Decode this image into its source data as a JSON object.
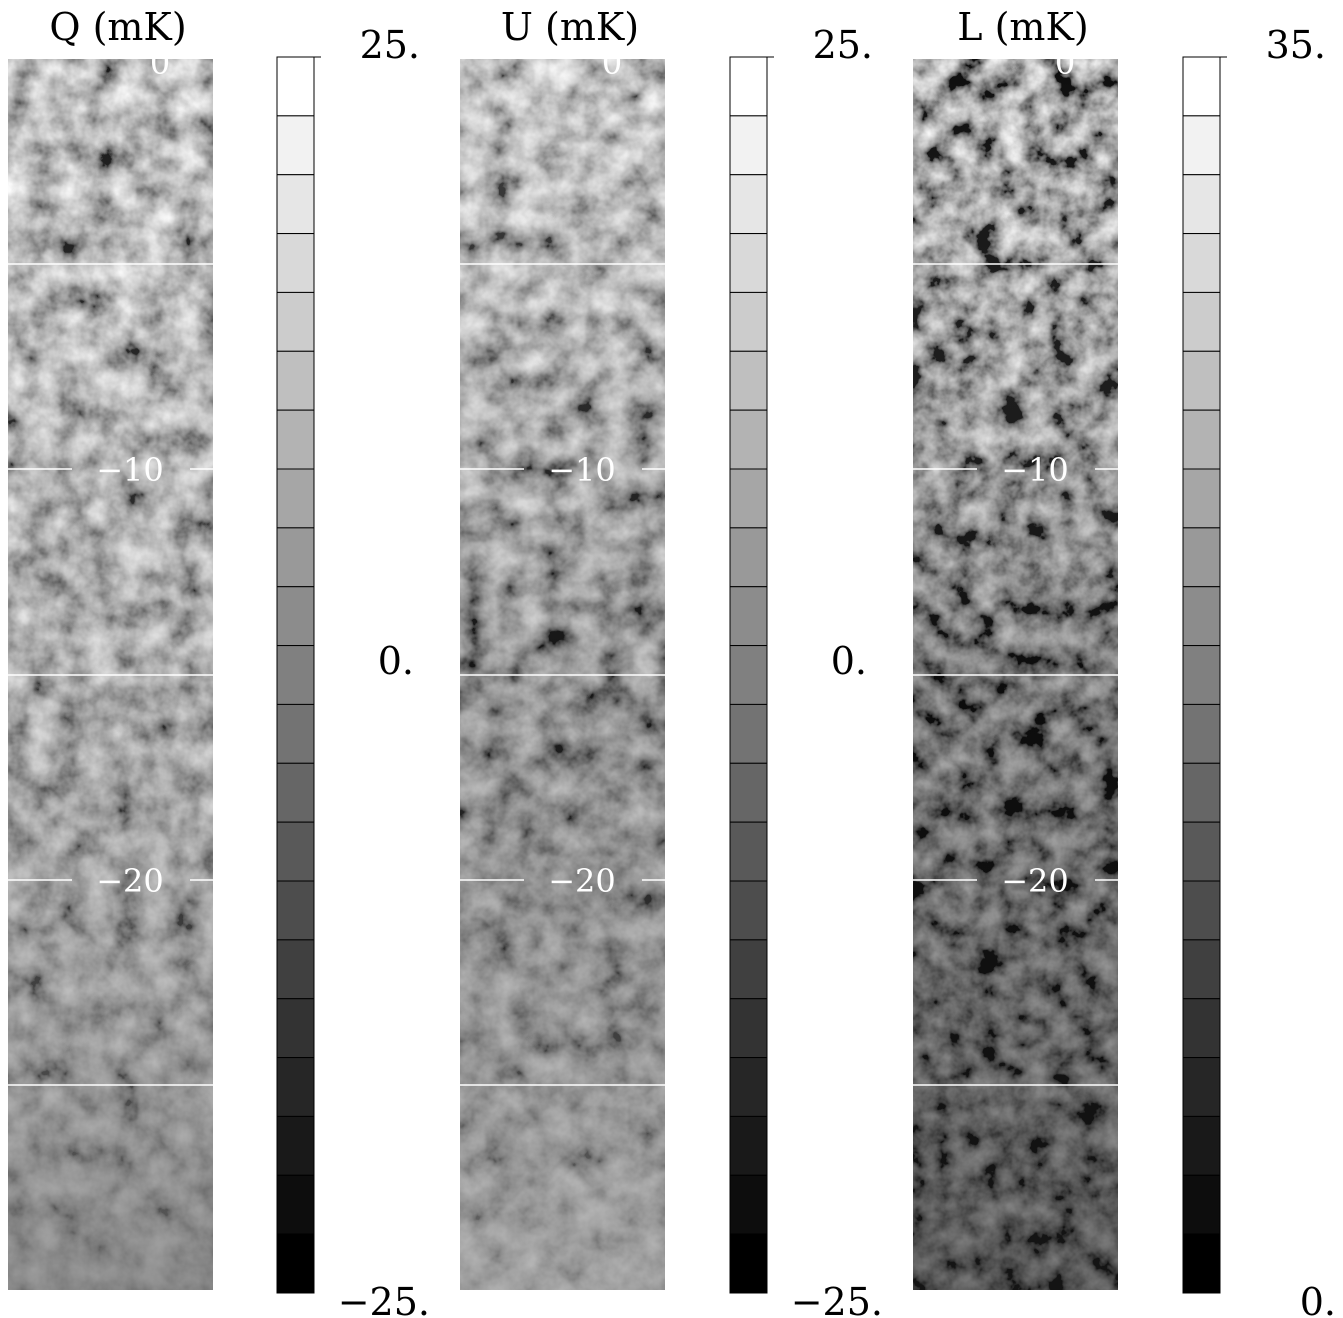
{
  "panels": [
    {
      "title": "Q (mK)",
      "map_labels": [
        "0",
        "−10",
        "−20"
      ],
      "colorbar": {
        "max": "25.",
        "mid": "0.",
        "min": "−25."
      }
    },
    {
      "title": "U (mK)",
      "map_labels": [
        "0",
        "−10",
        "−20"
      ],
      "colorbar": {
        "max": "25.",
        "mid": "0.",
        "min": "−25."
      }
    },
    {
      "title": "L (mK)",
      "map_labels": [
        "0",
        "−10",
        "−20"
      ],
      "colorbar": {
        "max": "35.",
        "min": "0."
      }
    }
  ]
}
